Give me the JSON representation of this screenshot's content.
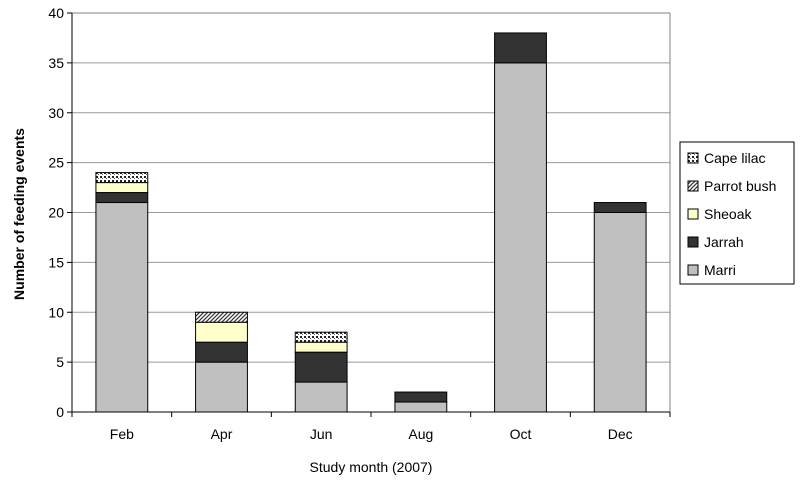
{
  "chart_data": {
    "type": "bar",
    "stacked": true,
    "title": "",
    "xlabel": "Study month (2007)",
    "ylabel": "Number of feeding events",
    "categories": [
      "Feb",
      "Apr",
      "Jun",
      "Aug",
      "Oct",
      "Dec"
    ],
    "ylim": [
      0,
      40
    ],
    "yticks": [
      0,
      5,
      10,
      15,
      20,
      25,
      30,
      35,
      40
    ],
    "grid": true,
    "legend_position": "right",
    "series": [
      {
        "name": "Marri",
        "values": [
          21,
          5,
          3,
          1,
          35,
          20
        ],
        "color": "#c0c0c0",
        "pattern": "solid"
      },
      {
        "name": "Jarrah",
        "values": [
          1,
          2,
          3,
          1,
          3,
          1
        ],
        "color": "#333333",
        "pattern": "solid"
      },
      {
        "name": "Sheoak",
        "values": [
          1,
          2,
          1,
          0,
          0,
          0
        ],
        "color": "#ffffcc",
        "pattern": "solid"
      },
      {
        "name": "Parrot bush",
        "values": [
          0,
          1,
          0,
          0,
          0,
          0
        ],
        "color": "#ffffff",
        "pattern": "diagonal-hatch"
      },
      {
        "name": "Cape lilac",
        "values": [
          1,
          0,
          1,
          0,
          0,
          0
        ],
        "color": "#ffffff",
        "pattern": "dotted"
      }
    ]
  }
}
